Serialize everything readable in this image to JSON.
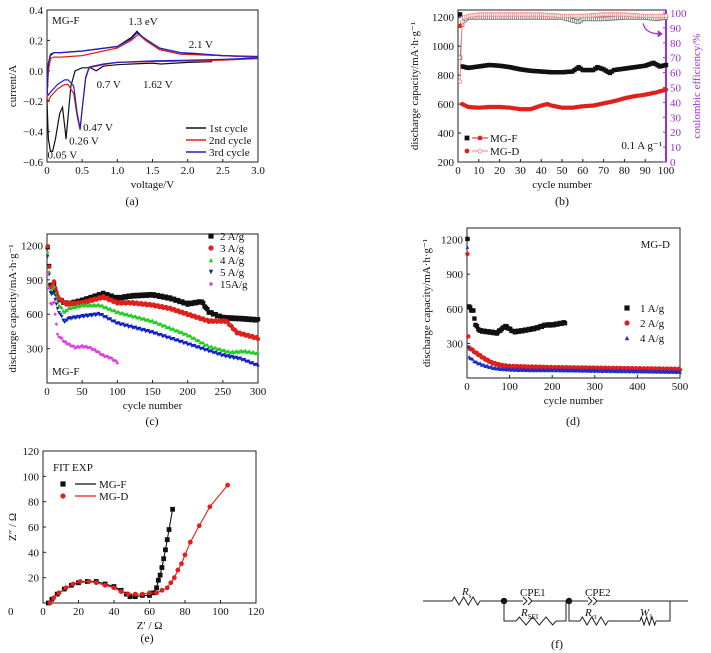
{
  "chart_data": [
    {
      "id": "a",
      "type": "line",
      "caption": "(a)",
      "title_label": "MG-F",
      "xlabel": "voltage/V",
      "ylabel": "current/A",
      "xlim": [
        0,
        3.0
      ],
      "ylim": [
        -0.6,
        0.4
      ],
      "xticks": [
        0,
        0.5,
        1.0,
        1.5,
        2.0,
        2.5,
        3.0
      ],
      "xtick_labels": [
        "0",
        "0.5",
        "1.0",
        "1.5",
        "2.0",
        "2.5",
        "3.0"
      ],
      "yticks": [
        -0.6,
        -0.4,
        -0.2,
        0.0,
        0.2,
        0.4
      ],
      "ytick_labels": [
        "−0.6",
        "−0.4",
        "−0.2",
        "0.0",
        "0.2",
        "0.4"
      ],
      "legend": "bottom-right",
      "annotations": [
        {
          "text": "1.3 eV",
          "x": 1.3,
          "y": 0.3
        },
        {
          "text": "2.1 V",
          "x": 2.1,
          "y": 0.15
        },
        {
          "text": "0.7 V",
          "x": 0.72,
          "y": -0.02
        },
        {
          "text": "1.62 V",
          "x": 1.62,
          "y": -0.02
        },
        {
          "text": "0.47 V",
          "x": 0.5,
          "y": -0.37
        },
        {
          "text": "0.26 V",
          "x": 0.3,
          "y": -0.46
        },
        {
          "text": "0.05 V",
          "x": 0.05,
          "y": -0.55
        }
      ],
      "series": [
        {
          "name": "1st cycle",
          "color": "#111111",
          "x": [
            2.35,
            2.0,
            1.62,
            1.5,
            1.2,
            1.0,
            0.8,
            0.7,
            0.62,
            0.5,
            0.4,
            0.34,
            0.3,
            0.27,
            0.26,
            0.22,
            0.18,
            0.12,
            0.08,
            0.05,
            0.02,
            0.0,
            0.02,
            0.05,
            0.1,
            0.2,
            0.5,
            1.0,
            1.2,
            1.28,
            1.4,
            1.6,
            1.9,
            2.1,
            2.5,
            3.0
          ],
          "y": [
            0.06,
            0.055,
            0.045,
            0.05,
            0.045,
            0.04,
            0.03,
            0.0,
            0.02,
            0.02,
            0.0,
            -0.1,
            -0.3,
            -0.45,
            -0.4,
            -0.24,
            -0.28,
            -0.45,
            -0.53,
            -0.53,
            -0.45,
            -0.2,
            0.05,
            0.1,
            0.12,
            0.12,
            0.13,
            0.16,
            0.22,
            0.26,
            0.2,
            0.14,
            0.11,
            0.11,
            0.1,
            0.09
          ]
        },
        {
          "name": "2nd cycle",
          "color": "#e0201c",
          "x": [
            3.0,
            2.5,
            2.0,
            1.5,
            1.0,
            0.8,
            0.6,
            0.55,
            0.5,
            0.47,
            0.43,
            0.38,
            0.3,
            0.25,
            0.15,
            0.05,
            0.02,
            0.0,
            0.02,
            0.05,
            0.1,
            0.2,
            0.5,
            1.0,
            1.2,
            1.3,
            1.4,
            1.6,
            1.9,
            2.1,
            2.5,
            3.0
          ],
          "y": [
            0.08,
            0.07,
            0.065,
            0.06,
            0.055,
            0.04,
            0.02,
            -0.05,
            -0.25,
            -0.39,
            -0.3,
            -0.15,
            -0.09,
            -0.09,
            -0.12,
            -0.17,
            -0.2,
            -0.18,
            0.0,
            0.08,
            0.09,
            0.09,
            0.1,
            0.15,
            0.2,
            0.24,
            0.2,
            0.14,
            0.11,
            0.105,
            0.1,
            0.09
          ]
        },
        {
          "name": "3rd cycle",
          "color": "#2020c8",
          "x": [
            3.0,
            2.5,
            2.0,
            1.5,
            1.0,
            0.8,
            0.6,
            0.55,
            0.5,
            0.47,
            0.43,
            0.38,
            0.3,
            0.25,
            0.15,
            0.05,
            0.02,
            0.0,
            0.02,
            0.05,
            0.1,
            0.2,
            0.5,
            1.0,
            1.2,
            1.28,
            1.4,
            1.6,
            1.9,
            2.1,
            2.5,
            3.0
          ],
          "y": [
            0.085,
            0.075,
            0.07,
            0.065,
            0.055,
            0.045,
            0.025,
            -0.04,
            -0.25,
            -0.38,
            -0.28,
            -0.1,
            -0.06,
            -0.06,
            -0.09,
            -0.14,
            -0.16,
            -0.14,
            0.05,
            0.11,
            0.12,
            0.12,
            0.13,
            0.16,
            0.21,
            0.25,
            0.21,
            0.15,
            0.12,
            0.115,
            0.1,
            0.095
          ]
        }
      ]
    },
    {
      "id": "b",
      "type": "scatter",
      "caption": "(b)",
      "xlabel": "cycle number",
      "ylabel": "discharge capacity/mA·h·g⁻¹",
      "ylabel2": "coulombic efficiency/%",
      "xlim": [
        0,
        100
      ],
      "ylim": [
        200,
        1250
      ],
      "ylim2": [
        0,
        102
      ],
      "xticks": [
        0,
        10,
        20,
        30,
        40,
        50,
        60,
        70,
        80,
        90,
        100
      ],
      "yticks": [
        200,
        400,
        600,
        800,
        1000,
        1200
      ],
      "yticks2": [
        0,
        10,
        20,
        30,
        40,
        50,
        60,
        70,
        80,
        90,
        100
      ],
      "legend": "bottom-left",
      "annotations": [
        {
          "text": "0.1 A g⁻¹"
        }
      ],
      "axis2_color": "#9b30d0",
      "series": [
        {
          "name": "MG-F",
          "marker": "filled-square",
          "color": "#111111",
          "axis": "capacity",
          "x": [
            1,
            2,
            5,
            10,
            15,
            20,
            25,
            30,
            35,
            40,
            45,
            50,
            55,
            58,
            60,
            65,
            67,
            70,
            73,
            75,
            80,
            85,
            90,
            94,
            97,
            100
          ],
          "y": [
            1220,
            860,
            850,
            860,
            870,
            865,
            855,
            840,
            830,
            825,
            820,
            820,
            825,
            855,
            835,
            835,
            855,
            840,
            815,
            835,
            845,
            855,
            865,
            885,
            860,
            870
          ]
        },
        {
          "name": "MG-F",
          "marker": "open-square",
          "color": "#777777",
          "axis": "efficiency",
          "x": [
            1,
            2,
            3,
            5,
            10,
            20,
            30,
            40,
            50,
            58,
            60,
            70,
            80,
            90,
            95,
            100
          ],
          "y": [
            70,
            92,
            95,
            97,
            97,
            97,
            97,
            97,
            97,
            94,
            96,
            96,
            97,
            97,
            96,
            97
          ]
        },
        {
          "name": "MG-D",
          "marker": "filled-circle",
          "color": "#e0201c",
          "axis": "capacity",
          "x": [
            1,
            2,
            5,
            10,
            15,
            20,
            25,
            30,
            35,
            40,
            43,
            45,
            50,
            55,
            60,
            65,
            70,
            75,
            80,
            85,
            90,
            95,
            100
          ],
          "y": [
            1140,
            600,
            580,
            575,
            580,
            580,
            575,
            565,
            565,
            590,
            600,
            590,
            575,
            575,
            585,
            590,
            605,
            620,
            640,
            655,
            665,
            680,
            700
          ]
        },
        {
          "name": "MG-D",
          "marker": "open-circle",
          "color": "#f08080",
          "axis": "efficiency",
          "x": [
            1,
            2,
            3,
            5,
            10,
            20,
            30,
            40,
            50,
            60,
            70,
            80,
            90,
            100
          ],
          "y": [
            54,
            94,
            97,
            98,
            99,
            99,
            99,
            99,
            98,
            98,
            99,
            99,
            98,
            98
          ]
        }
      ]
    },
    {
      "id": "c",
      "type": "scatter",
      "caption": "(c)",
      "title_label": "MG-F",
      "xlabel": "cycle number",
      "ylabel": "discharge capacity/mA·h·g⁻¹",
      "xlim": [
        0,
        300
      ],
      "ylim": [
        0,
        1300
      ],
      "xticks": [
        0,
        50,
        100,
        150,
        200,
        250,
        300
      ],
      "yticks": [
        300,
        600,
        900,
        1200
      ],
      "legend": "top-right",
      "series": [
        {
          "name": "2 A/g",
          "marker": "square",
          "color": "#111111",
          "x": [
            1,
            5,
            10,
            15,
            25,
            30,
            50,
            80,
            100,
            120,
            150,
            175,
            200,
            220,
            230,
            250,
            280,
            300
          ],
          "y": [
            1190,
            850,
            860,
            740,
            700,
            690,
            720,
            780,
            740,
            760,
            770,
            740,
            690,
            710,
            620,
            570,
            560,
            550
          ]
        },
        {
          "name": "3 A/g",
          "marker": "circle",
          "color": "#e0201c",
          "x": [
            1,
            5,
            10,
            15,
            25,
            30,
            50,
            80,
            100,
            120,
            150,
            175,
            200,
            230,
            255,
            270,
            300
          ],
          "y": [
            1200,
            830,
            880,
            750,
            700,
            690,
            700,
            750,
            700,
            700,
            680,
            650,
            600,
            540,
            540,
            440,
            390
          ]
        },
        {
          "name": "4 A/g",
          "marker": "triangle-up",
          "color": "#22cc22",
          "x": [
            1,
            5,
            10,
            15,
            25,
            30,
            50,
            75,
            100,
            150,
            200,
            230,
            260,
            280,
            300
          ],
          "y": [
            1150,
            800,
            840,
            700,
            620,
            650,
            680,
            680,
            620,
            540,
            420,
            320,
            270,
            280,
            260
          ]
        },
        {
          "name": "5 A/g",
          "marker": "triangle-down",
          "color": "#1020c0",
          "x": [
            1,
            5,
            10,
            15,
            25,
            30,
            50,
            75,
            100,
            150,
            200,
            250,
            275,
            300
          ],
          "y": [
            1110,
            780,
            780,
            640,
            530,
            560,
            580,
            600,
            520,
            440,
            340,
            240,
            210,
            150
          ]
        },
        {
          "name": "15A/g",
          "marker": "diamond",
          "color": "#e040e0",
          "x": [
            1,
            5,
            10,
            15,
            25,
            30,
            40,
            50,
            60,
            70,
            80,
            90,
            100
          ],
          "y": [
            960,
            690,
            700,
            420,
            360,
            340,
            310,
            320,
            310,
            280,
            240,
            220,
            180
          ]
        }
      ]
    },
    {
      "id": "d",
      "type": "scatter",
      "caption": "(d)",
      "title_label": "MG-D",
      "xlabel": "cycle number",
      "ylabel": "discharge capacity/mA·h·g⁻¹",
      "xlim": [
        0,
        500
      ],
      "ylim": [
        0,
        1300
      ],
      "xticks": [
        0,
        100,
        200,
        300,
        400,
        500
      ],
      "yticks": [
        300,
        600,
        900,
        1200
      ],
      "legend": "center-right",
      "series": [
        {
          "name": "1 A/g",
          "marker": "square",
          "color": "#111111",
          "x": [
            1,
            5,
            10,
            15,
            20,
            30,
            50,
            70,
            90,
            110,
            130,
            160,
            185,
            200,
            230
          ],
          "y": [
            1210,
            620,
            590,
            580,
            460,
            410,
            400,
            390,
            450,
            400,
            410,
            430,
            460,
            460,
            480
          ]
        },
        {
          "name": "2 A/g",
          "marker": "circle",
          "color": "#e0201c",
          "x": [
            1,
            3,
            5,
            10,
            20,
            40,
            60,
            80,
            100,
            150,
            200,
            300,
            400,
            500
          ],
          "y": [
            1080,
            360,
            260,
            250,
            220,
            170,
            130,
            110,
            100,
            95,
            90,
            85,
            80,
            75
          ]
        },
        {
          "name": "4 A/g",
          "marker": "triangle",
          "color": "#1a2fd0",
          "x": [
            1,
            3,
            5,
            10,
            20,
            40,
            60,
            80,
            100,
            150,
            200,
            300,
            400,
            500
          ],
          "y": [
            1140,
            270,
            180,
            170,
            140,
            110,
            90,
            80,
            75,
            70,
            70,
            65,
            60,
            55
          ]
        }
      ]
    },
    {
      "id": "e",
      "type": "scatter",
      "caption": "(e)",
      "xlabel": "Z′ / Ω",
      "ylabel": "Z″ / Ω",
      "xlim": [
        0,
        120
      ],
      "ylim": [
        0,
        120
      ],
      "xticks": [
        0,
        20,
        40,
        60,
        80,
        100,
        120
      ],
      "yticks": [
        20,
        40,
        60,
        80,
        100,
        120
      ],
      "legend": "top-left",
      "legend_header": "FIT EXP",
      "series": [
        {
          "name": "MG-F",
          "color": "#111111",
          "marker": "square",
          "x": [
            3,
            5,
            8,
            12,
            16,
            20,
            25,
            30,
            35,
            40,
            44,
            47,
            49,
            52,
            56,
            60,
            62,
            64,
            65,
            66,
            67,
            68,
            69,
            70,
            71,
            73
          ],
          "y": [
            0,
            3,
            7,
            11,
            14,
            16,
            17,
            17,
            15,
            13,
            10,
            7,
            5,
            5,
            6,
            6,
            8,
            12,
            18,
            22,
            28,
            35,
            42,
            50,
            58,
            74
          ]
        },
        {
          "name": "MG-D",
          "color": "#e0201c",
          "marker": "circle",
          "x": [
            4,
            6,
            9,
            13,
            17,
            21,
            26,
            30,
            35,
            40,
            44,
            48,
            52,
            56,
            60,
            64,
            67,
            70,
            72,
            74,
            76,
            78,
            80,
            83,
            88,
            94,
            104
          ],
          "y": [
            0,
            4,
            8,
            12,
            15,
            17,
            17,
            16,
            14,
            12,
            9,
            7,
            7,
            7,
            8,
            8,
            10,
            12,
            16,
            20,
            26,
            31,
            38,
            48,
            61,
            76,
            93
          ]
        }
      ]
    }
  ],
  "circuit": {
    "caption": "(f)",
    "components": [
      "R_s",
      "CPE1",
      "R_SEI",
      "CPE2",
      "R_ct",
      "W_1"
    ],
    "labels": {
      "rs": "R",
      "rs_sub": "s",
      "cpe1": "CPE1",
      "rsei": "R",
      "rsei_sub": "SEI",
      "cpe2": "CPE2",
      "rct": "R",
      "rct_sub": "ct",
      "w": "W",
      "w_sub": "1"
    }
  }
}
